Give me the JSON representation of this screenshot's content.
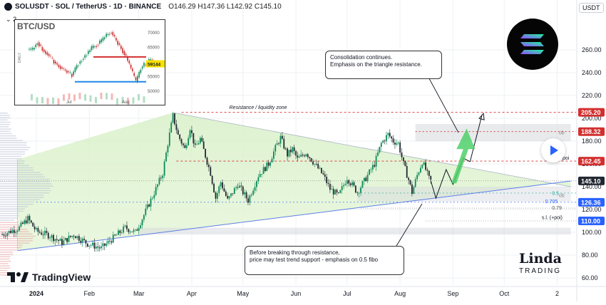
{
  "header": {
    "symbol_line": "SOLUSDT · SOL / TetherUS · 1D · BINANCE",
    "ohlc": "O146.29 H147.36 L142.92 C145.10",
    "indicator_count": "2",
    "currency": "USDT"
  },
  "watermark": {
    "brand": "TradingView",
    "author_top": "Linda",
    "author_bottom": "TRADING"
  },
  "annotations": {
    "resistance_zone": "Resistance / liquidity zone",
    "consolidation_l1": "Consolidation continues.",
    "consolidation_l2": "Emphasis on the triangle resistance.",
    "before_l1": "Before breaking through resistance,",
    "before_l2": "price may test trend support - emphasis on 0.5 fibo",
    "fib_05": "0.5",
    "fib_0705": "0.705",
    "fib_079": "0.79",
    "sl": "s.l. (+poi)",
    "poi": "poi",
    "ob1": "ob",
    "ob2": "ob"
  },
  "colors": {
    "up": "#0b8a57",
    "down": "#222831",
    "accent": "#d32f2f",
    "blue": "#2962ff",
    "trend": "#5b7fe6",
    "arrow_green": "#4fd06a"
  },
  "chart_data": {
    "type": "candlestick",
    "ylim": [
      60,
      275
    ],
    "y_ticks": [
      260,
      240,
      220,
      200,
      180,
      160,
      140,
      120,
      100,
      80,
      60
    ],
    "x_labels": [
      "2024",
      "Feb",
      "Mar",
      "Apr",
      "May",
      "Jun",
      "Jul",
      "Aug",
      "Sep",
      "Oct",
      "2"
    ],
    "x_label_days": [
      0,
      31,
      60,
      91,
      121,
      152,
      182,
      213,
      244,
      274,
      305
    ],
    "price_labels": [
      {
        "value": 205.2,
        "text": "205.20",
        "color": "#d32f2f"
      },
      {
        "value": 188.32,
        "text": "188.32",
        "color": "#d32f2f"
      },
      {
        "value": 162.45,
        "text": "162.45",
        "color": "#d32f2f"
      },
      {
        "value": 145.1,
        "text": "145.10",
        "color": "#222831"
      },
      {
        "value": 126.36,
        "text": "126.36",
        "color": "#2962ff"
      },
      {
        "value": 110.0,
        "text": "110.00",
        "color": "#2962ff"
      }
    ],
    "price_path": [
      [
        -20,
        98
      ],
      [
        -10,
        104
      ],
      [
        -5,
        112
      ],
      [
        0,
        101
      ],
      [
        8,
        97
      ],
      [
        15,
        91
      ],
      [
        22,
        98
      ],
      [
        30,
        90
      ],
      [
        38,
        86
      ],
      [
        45,
        95
      ],
      [
        52,
        104
      ],
      [
        58,
        100
      ],
      [
        62,
        112
      ],
      [
        66,
        125
      ],
      [
        70,
        138
      ],
      [
        74,
        152
      ],
      [
        77,
        178
      ],
      [
        80,
        202
      ],
      [
        83,
        185
      ],
      [
        87,
        173
      ],
      [
        90,
        192
      ],
      [
        93,
        174
      ],
      [
        96,
        182
      ],
      [
        99,
        167
      ],
      [
        102,
        152
      ],
      [
        105,
        130
      ],
      [
        108,
        144
      ],
      [
        112,
        128
      ],
      [
        118,
        142
      ],
      [
        124,
        128
      ],
      [
        130,
        150
      ],
      [
        136,
        160
      ],
      [
        140,
        174
      ],
      [
        143,
        183
      ],
      [
        147,
        168
      ],
      [
        150,
        173
      ],
      [
        153,
        164
      ],
      [
        158,
        170
      ],
      [
        163,
        160
      ],
      [
        168,
        150
      ],
      [
        172,
        138
      ],
      [
        177,
        132
      ],
      [
        182,
        148
      ],
      [
        188,
        135
      ],
      [
        192,
        145
      ],
      [
        198,
        160
      ],
      [
        202,
        178
      ],
      [
        206,
        186
      ],
      [
        209,
        180
      ],
      [
        212,
        178
      ],
      [
        215,
        160
      ],
      [
        218,
        146
      ],
      [
        220,
        135
      ],
      [
        223,
        150
      ],
      [
        226,
        162
      ],
      [
        228,
        155
      ],
      [
        230,
        147
      ],
      [
        231,
        145.1
      ]
    ],
    "projection": [
      [
        231,
        145.1
      ],
      [
        234,
        130
      ],
      [
        240,
        155
      ],
      [
        244,
        142
      ],
      [
        250,
        165
      ],
      [
        254,
        162
      ],
      [
        261,
        203
      ]
    ],
    "triangle_resistance": [
      [
        80,
        205
      ],
      [
        313,
        140
      ]
    ],
    "trend_support": [
      [
        -11,
        84
      ],
      [
        313,
        145
      ]
    ],
    "inset": {
      "title": "BTC/USD",
      "last_price": "59144",
      "y_ticks": [
        "70000",
        "65000",
        "60000",
        "55000",
        "50000"
      ],
      "x_labels": [
        "Jul",
        "Aug"
      ],
      "side_label": "DAILY",
      "path": [
        64000,
        66500,
        64000,
        62500,
        60500,
        58800,
        57500,
        56500,
        55200,
        58500,
        60500,
        62500,
        64500,
        65500,
        67000,
        69000,
        70000,
        67000,
        64500,
        61500,
        57500,
        53000,
        57500,
        59500,
        60500,
        59144
      ],
      "resistance": 61500,
      "support": 53000
    }
  }
}
